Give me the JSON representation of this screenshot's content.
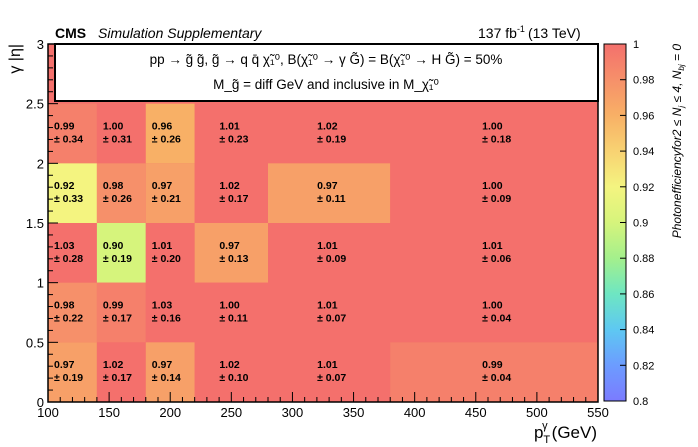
{
  "header": {
    "experiment": "CMS",
    "qualifier": "Simulation Supplementary",
    "lumi_value": "137 fb",
    "lumi_exp": "-1",
    "energy": "(13 TeV)"
  },
  "legend_box": {
    "line1": "pp → g̃ g̃, g̃ → q q̄ χ̃₁⁰, B(χ̃₁⁰ → γ G̃) = B(χ̃₁⁰ → H G̃) = 50%",
    "line2": "M_g̃ = diff GeV and inclusive in M_χ̃₁⁰"
  },
  "colors": {
    "frame": "#000000",
    "colorbar_stops": [
      {
        "v": 0.8,
        "c": "#7b7bff"
      },
      {
        "v": 0.82,
        "c": "#6c9cff"
      },
      {
        "v": 0.84,
        "c": "#5ec8f2"
      },
      {
        "v": 0.86,
        "c": "#6ee6c2"
      },
      {
        "v": 0.88,
        "c": "#a4f08c"
      },
      {
        "v": 0.9,
        "c": "#d6f47c"
      },
      {
        "v": 0.92,
        "c": "#f4f480"
      },
      {
        "v": 0.94,
        "c": "#f8d272"
      },
      {
        "v": 0.96,
        "c": "#f8b066"
      },
      {
        "v": 0.98,
        "c": "#f6906a"
      },
      {
        "v": 1.0,
        "c": "#f4706c"
      }
    ]
  },
  "chart_data": {
    "type": "heatmap",
    "xlabel": "p",
    "xlabel_sub": "T",
    "xlabel_sup": "γ",
    "xlabel_unit": "(GeV)",
    "ylabel": "γ |η|",
    "zlabel": "Photonefficiencyfor2 ≤ N",
    "zlabel_sub1": "j",
    "zlabel_mid": " ≤ 4, N",
    "zlabel_sub2": "bj",
    "zlabel_end": " = 0",
    "xlim": [
      100,
      550
    ],
    "ylim": [
      0,
      3
    ],
    "zlim": [
      0.8,
      1.0
    ],
    "x_ticks": [
      100,
      150,
      200,
      250,
      300,
      350,
      400,
      450,
      500,
      550
    ],
    "y_ticks": [
      0,
      0.5,
      1,
      1.5,
      2,
      2.5,
      3
    ],
    "z_ticks": [
      0.8,
      0.82,
      0.84,
      0.86,
      0.88,
      0.9,
      0.92,
      0.94,
      0.96,
      0.98,
      1
    ],
    "x_bin_edges": [
      100,
      140,
      180,
      220,
      280,
      380,
      550
    ],
    "y_bin_edges": [
      0,
      0.5,
      1.0,
      1.5,
      2.0,
      2.5
    ],
    "cells": [
      {
        "row": 4,
        "col": 0,
        "value": "0.99",
        "error": "± 0.34",
        "z": 0.99
      },
      {
        "row": 4,
        "col": 1,
        "value": "1.00",
        "error": "± 0.31",
        "z": 1.0
      },
      {
        "row": 4,
        "col": 2,
        "value": "0.96",
        "error": "± 0.26",
        "z": 0.96
      },
      {
        "row": 4,
        "col": 3,
        "value": "1.01",
        "error": "± 0.23",
        "z": 1.01
      },
      {
        "row": 4,
        "col": 4,
        "value": "1.02",
        "error": "± 0.19",
        "z": 1.02
      },
      {
        "row": 4,
        "col": 5,
        "value": "1.00",
        "error": "± 0.18",
        "z": 1.0
      },
      {
        "row": 3,
        "col": 0,
        "value": "0.92",
        "error": "± 0.33",
        "z": 0.92
      },
      {
        "row": 3,
        "col": 1,
        "value": "0.98",
        "error": "± 0.26",
        "z": 0.98
      },
      {
        "row": 3,
        "col": 2,
        "value": "0.97",
        "error": "± 0.21",
        "z": 0.97
      },
      {
        "row": 3,
        "col": 3,
        "value": "1.02",
        "error": "± 0.17",
        "z": 1.02
      },
      {
        "row": 3,
        "col": 4,
        "value": "0.97",
        "error": "± 0.11",
        "z": 0.97
      },
      {
        "row": 3,
        "col": 5,
        "value": "1.00",
        "error": "± 0.09",
        "z": 1.0
      },
      {
        "row": 2,
        "col": 0,
        "value": "1.03",
        "error": "± 0.28",
        "z": 1.03
      },
      {
        "row": 2,
        "col": 1,
        "value": "0.90",
        "error": "± 0.19",
        "z": 0.9
      },
      {
        "row": 2,
        "col": 2,
        "value": "1.01",
        "error": "± 0.20",
        "z": 1.01
      },
      {
        "row": 2,
        "col": 3,
        "value": "0.97",
        "error": "± 0.13",
        "z": 0.97
      },
      {
        "row": 2,
        "col": 4,
        "value": "1.01",
        "error": "± 0.09",
        "z": 1.01
      },
      {
        "row": 2,
        "col": 5,
        "value": "1.01",
        "error": "± 0.06",
        "z": 1.01
      },
      {
        "row": 1,
        "col": 0,
        "value": "0.98",
        "error": "± 0.22",
        "z": 0.98
      },
      {
        "row": 1,
        "col": 1,
        "value": "0.99",
        "error": "± 0.17",
        "z": 0.99
      },
      {
        "row": 1,
        "col": 2,
        "value": "1.03",
        "error": "± 0.16",
        "z": 1.03
      },
      {
        "row": 1,
        "col": 3,
        "value": "1.00",
        "error": "± 0.11",
        "z": 1.0
      },
      {
        "row": 1,
        "col": 4,
        "value": "1.01",
        "error": "± 0.07",
        "z": 1.01
      },
      {
        "row": 1,
        "col": 5,
        "value": "1.00",
        "error": "± 0.04",
        "z": 1.0
      },
      {
        "row": 0,
        "col": 0,
        "value": "0.97",
        "error": "± 0.19",
        "z": 0.97
      },
      {
        "row": 0,
        "col": 1,
        "value": "1.02",
        "error": "± 0.17",
        "z": 1.02
      },
      {
        "row": 0,
        "col": 2,
        "value": "0.97",
        "error": "± 0.14",
        "z": 0.97
      },
      {
        "row": 0,
        "col": 3,
        "value": "1.02",
        "error": "± 0.10",
        "z": 1.02
      },
      {
        "row": 0,
        "col": 4,
        "value": "1.01",
        "error": "± 0.07",
        "z": 1.01
      },
      {
        "row": 0,
        "col": 5,
        "value": "0.99",
        "error": "± 0.04",
        "z": 0.99
      }
    ],
    "empty_region_value": 1.0
  }
}
